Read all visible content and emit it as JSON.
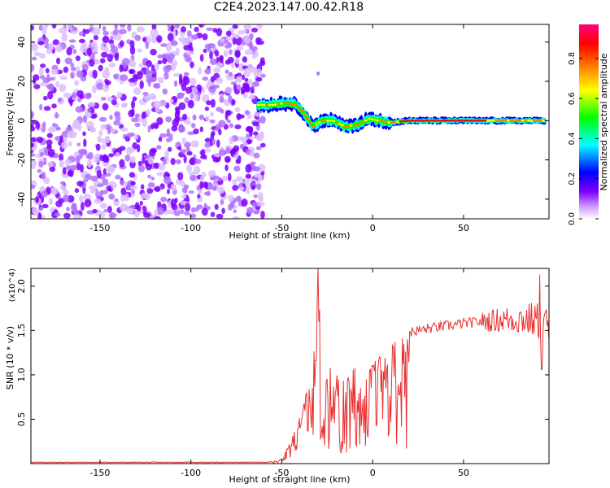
{
  "title": "C2E4.2023.147.00.42.R18",
  "chart_data": [
    {
      "type": "heatmap",
      "xlabel": "Height of straight line (km)",
      "ylabel": "Frequency (Hz)",
      "xlim": [
        -188,
        97
      ],
      "ylim": [
        -50,
        49
      ],
      "xticks": [
        -150,
        -100,
        -50,
        0,
        50
      ],
      "yticks": [
        -40,
        -20,
        0,
        20,
        40
      ],
      "colorbar": {
        "label": "Normalized spectral amplitude",
        "range": [
          0.0,
          0.97
        ],
        "ticks": [
          0.0,
          0.2,
          0.4,
          0.6,
          0.8
        ],
        "colors": [
          "#ffffff",
          "#7f00ff",
          "#0000ff",
          "#00ffff",
          "#00ff00",
          "#ffff00",
          "#ff8000",
          "#ff0000",
          "#ff0080"
        ]
      },
      "features": [
        {
          "name": "noise region",
          "x_range": [
            -188,
            -62
          ],
          "y_range": [
            -50,
            49
          ],
          "amplitude": 0.05
        },
        {
          "name": "signal trace",
          "points": [
            [
              -63,
              8
            ],
            [
              -55,
              8
            ],
            [
              -48,
              9
            ],
            [
              -42,
              8
            ],
            [
              -38,
              4
            ],
            [
              -33,
              -3
            ],
            [
              -28,
              0
            ],
            [
              -22,
              0
            ],
            [
              -15,
              -3
            ],
            [
              -8,
              -2
            ],
            [
              -2,
              1
            ],
            [
              3,
              0
            ],
            [
              10,
              -1
            ],
            [
              20,
              0
            ],
            [
              40,
              0
            ],
            [
              60,
              0
            ],
            [
              80,
              0
            ],
            [
              95,
              0
            ]
          ],
          "amplitude": 0.8
        }
      ]
    },
    {
      "type": "line",
      "xlabel": "Height of straight line (km)",
      "ylabel": "SNR (10 * v/v)",
      "scale_label": "(x10^4)",
      "xlim": [
        -188,
        97
      ],
      "ylim": [
        0,
        2.2
      ],
      "xticks": [
        -150,
        -100,
        -50,
        0,
        50
      ],
      "yticks": [
        0.5,
        1.0,
        1.5,
        2.0
      ],
      "color": "#e83030",
      "envelope": {
        "x": [
          -188,
          -60,
          -55,
          -50,
          -45,
          -40,
          -35,
          -32,
          -30,
          -28,
          -25,
          -20,
          -15,
          -10,
          -5,
          0,
          5,
          10,
          15,
          20,
          30,
          40,
          50,
          60,
          70,
          80,
          88,
          92,
          97
        ],
        "y": [
          0.015,
          0.015,
          0.02,
          0.06,
          0.25,
          0.55,
          0.9,
          1.6,
          2.2,
          1.3,
          1.1,
          1.0,
          0.95,
          1.05,
          1.0,
          1.1,
          1.2,
          1.3,
          1.4,
          1.48,
          1.52,
          1.55,
          1.58,
          1.6,
          1.62,
          1.63,
          1.62,
          1.6,
          1.55
        ]
      }
    }
  ]
}
